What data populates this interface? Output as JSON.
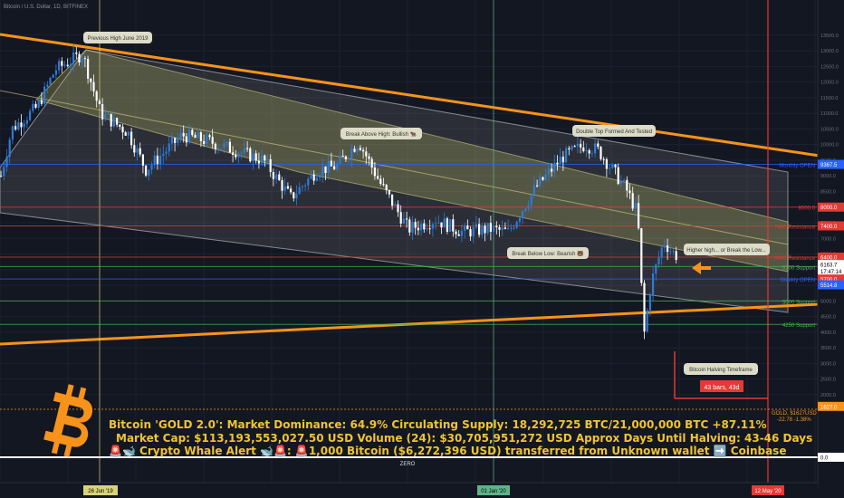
{
  "header": {
    "title": "Bitcoin / U.S. Dollar, 1D, BITFINEX"
  },
  "chart_data": {
    "type": "candlestick",
    "ylim": [
      1300,
      13800
    ],
    "price_axis": {
      "ticks": [
        "13500.0",
        "13000.0",
        "12500.0",
        "12000.0",
        "11500.0",
        "11000.0",
        "10500.0",
        "10000.0",
        "9500.0",
        "9000.0",
        "8500.0",
        "8000.0",
        "7500.0",
        "7000.0",
        "6500.0",
        "6000.0",
        "5500.0",
        "5000.0",
        "4500.0",
        "4000.0",
        "3500.0",
        "3000.0",
        "2500.0",
        "2000.0"
      ],
      "markers": [
        {
          "label": "9367.5",
          "value": 9367.5,
          "color": "#2962ff"
        },
        {
          "label": "8000.0",
          "value": 8000,
          "color": "#e53935"
        },
        {
          "label": "7400.0",
          "value": 7400,
          "color": "#e53935"
        },
        {
          "label": "6400.0",
          "value": 6400,
          "color": "#e53935"
        },
        {
          "label": "6163.7",
          "value": 6163.7,
          "color": "#ffffff"
        },
        {
          "label": "17:47:14",
          "value": 5950,
          "color": "#ffffff"
        },
        {
          "label": "5700.0",
          "value": 5700,
          "color": "#e53935"
        },
        {
          "label": "5514.8",
          "value": 5514.8,
          "color": "#2962ff"
        },
        {
          "label": "1627.0",
          "value": 1627,
          "color": "#f7931a"
        },
        {
          "label": "0.0",
          "value": 0,
          "color": "#ffffff"
        }
      ]
    },
    "horizontal_levels": [
      {
        "label": "Monthly OPEN",
        "value": 9367.5,
        "color": "#2962ff"
      },
      {
        "label": "8000.0",
        "value": 8000,
        "color": "#e53935"
      },
      {
        "label": "7400 Resistance",
        "value": 7400,
        "color": "#e53935"
      },
      {
        "label": "6400 Resistance",
        "value": 6400,
        "color": "#e53935"
      },
      {
        "label": "6100 Support",
        "value": 6100,
        "color": "#4caf50"
      },
      {
        "label": "Weekly OPEN",
        "value": 5700,
        "color": "#2962ff"
      },
      {
        "label": "5000 Support",
        "value": 5000,
        "color": "#4caf50"
      },
      {
        "label": "4250 Support",
        "value": 4250,
        "color": "#4caf50"
      }
    ],
    "time_axis": {
      "labels": [
        "26 Jun '19",
        "01 Jan '20",
        "12 May '20"
      ]
    },
    "annotations": [
      "Previous High June 2019",
      "Break Above High: Bullish 🐂",
      "Double Top Formed And Tested",
      "Break Below Low: Bearish 🐻",
      "Higher high... or Break the Low...",
      "Bitcoin Halving Timeframe"
    ],
    "halving_box": {
      "label": "43 bars, 43d"
    },
    "gold_label": {
      "line1": "GOLD, $1627USD",
      "line2": "-22.78 -1.38%"
    },
    "zero_label": "ZERO"
  },
  "info": {
    "line1": "Bitcoin 'GOLD 2.0': Market Dominance: 64.9%  Circulating Supply: 18,292,725 BTC/21,000,000 BTC +87.11%",
    "line2": "Market Cap: $113,193,553,027.50 USD Volume (24): $30,705,951,272 USD Approx Days Until Halving: 43-46 Days",
    "line3": "🚨🐋 Crypto Whale Alert 🐋🚨:  🚨1,000 Bitcoin ($6,272,396 USD) transferred from Unknown wallet ➡️ Coinbase"
  },
  "colors": {
    "bg": "#131722",
    "orange": "#f7931a",
    "up": "#2e7bd6",
    "down": "#ffffff",
    "channel": "#d4d06a"
  }
}
